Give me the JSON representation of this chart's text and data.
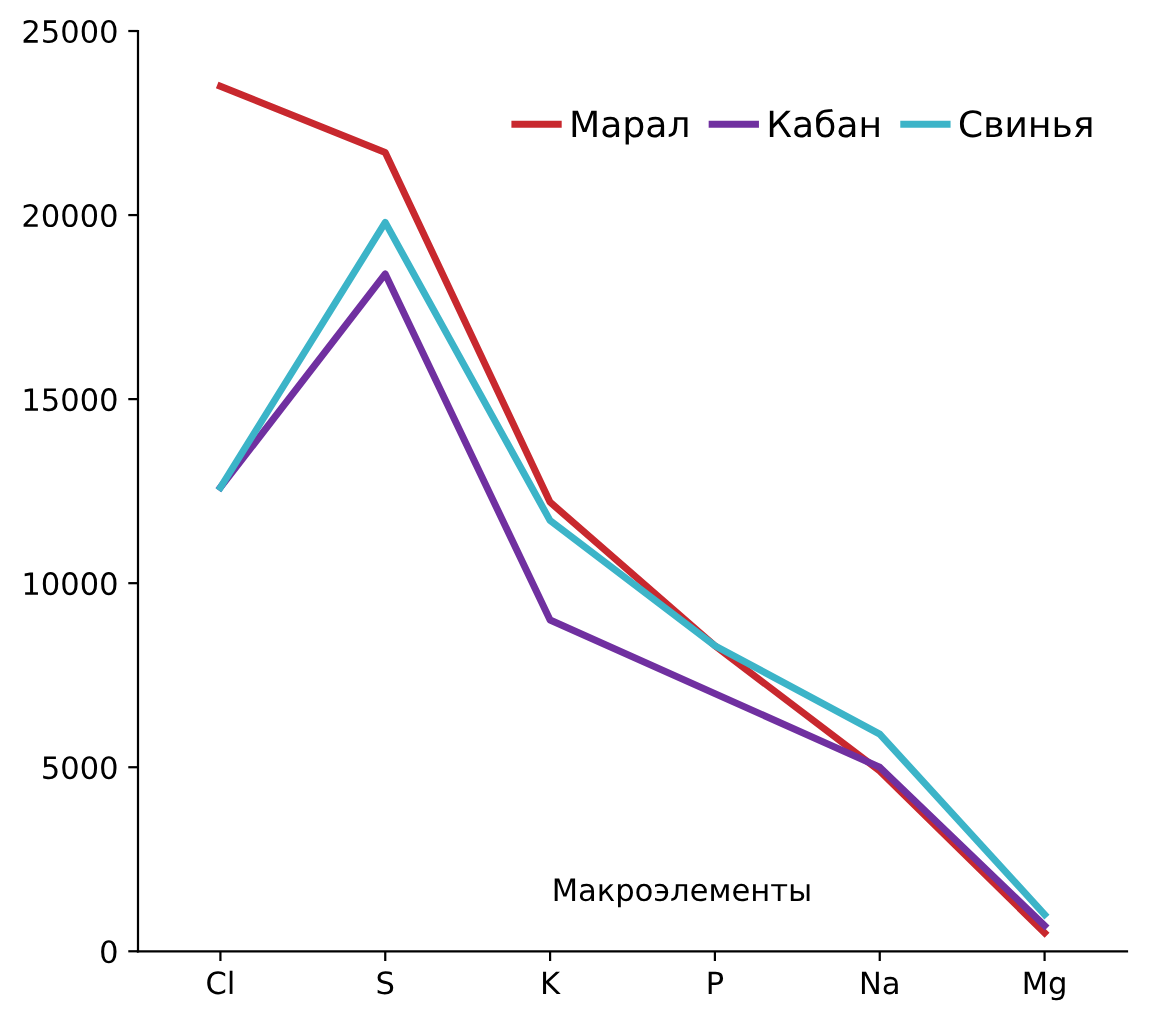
{
  "chart_data": {
    "type": "line",
    "xlabel": "Макроэлементы",
    "categories": [
      "Cl",
      "S",
      "K",
      "P",
      "Na",
      "Mg"
    ],
    "series": [
      {
        "name": "Марал",
        "color": "#c8282e",
        "values": [
          23500,
          21700,
          12200,
          8300,
          4900,
          500
        ]
      },
      {
        "name": "Кабан",
        "color": "#7030a0",
        "values": [
          12600,
          18400,
          9000,
          7000,
          5000,
          700
        ]
      },
      {
        "name": "Свинья",
        "color": "#3cb4c8",
        "values": [
          12600,
          19800,
          11700,
          8300,
          5900,
          1000
        ]
      }
    ],
    "ylim": [
      0,
      25000
    ],
    "yticks": [
      0,
      5000,
      10000,
      15000,
      20000,
      25000
    ],
    "grid": false,
    "legend": "top right",
    "line_style": "solid",
    "marker": "none"
  }
}
